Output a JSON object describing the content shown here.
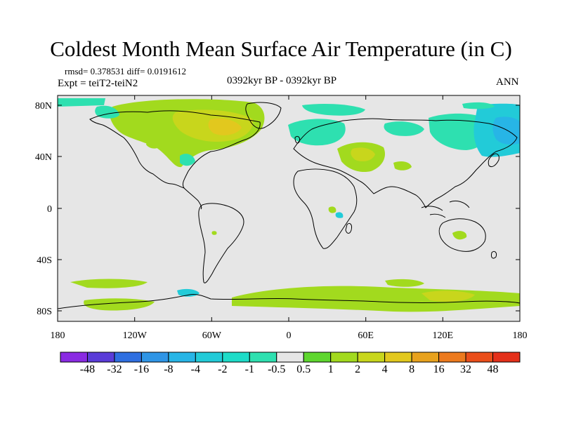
{
  "title": "Coldest Month Mean Surface Air Temperature (in C)",
  "stats": {
    "rmsd_diff": "rmsd= 0.378531  diff= 0.0191612",
    "expt": "Expt = teiT2-teiN2",
    "period": "0392kyr BP - 0392kyr BP",
    "season": "ANN"
  },
  "axes": {
    "x_ticks": [
      "180",
      "120W",
      "60W",
      "0",
      "60E",
      "120E",
      "180"
    ],
    "y_ticks": [
      "80N",
      "40N",
      "0",
      "40S",
      "80S"
    ]
  },
  "colorbar": {
    "labels": [
      "-48",
      "-32",
      "-16",
      "-8",
      "-4",
      "-2",
      "-1",
      "-0.5",
      "0.5",
      "1",
      "2",
      "4",
      "8",
      "16",
      "32",
      "48"
    ],
    "colors": [
      "#8a2be2",
      "#5a3cd8",
      "#2f6fe0",
      "#2f95e6",
      "#27b5e6",
      "#22cbd8",
      "#1edcc8",
      "#2ee0b0",
      "#e6e6e6",
      "#5ed62e",
      "#a2da1e",
      "#c8d61c",
      "#e2c81e",
      "#e8a21e",
      "#ec7a1e",
      "#ea4e1a",
      "#e4301a"
    ]
  },
  "map_colors": {
    "background": "#e6e6e6",
    "warm_light": "#a2da1e",
    "warm_mid": "#c8d61c",
    "warm_strong": "#e2c81e",
    "cool_light": "#2ee0b0",
    "cool_mid": "#22cbd8",
    "cool_strong": "#27b5e6"
  }
}
